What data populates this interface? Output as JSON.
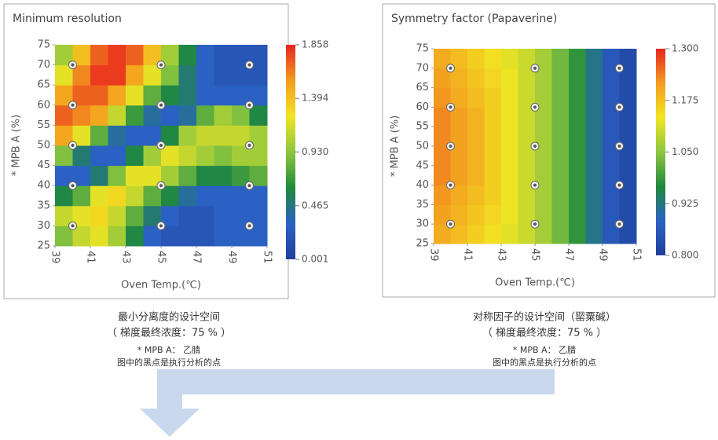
{
  "chart_data": [
    {
      "type": "heatmap",
      "title": "Minimum resolution",
      "x_label": "Oven Temp.(℃)",
      "y_label": "* MPB A (%)",
      "xlim": [
        39,
        51
      ],
      "ylim": [
        25,
        75
      ],
      "xticks": [
        39,
        41,
        43,
        45,
        47,
        49,
        51
      ],
      "yticks": [
        25,
        30,
        35,
        40,
        45,
        50,
        55,
        60,
        65,
        70,
        75
      ],
      "x_edges": [
        39,
        40,
        41,
        42,
        43,
        44,
        45,
        46,
        47,
        48,
        49,
        50,
        51
      ],
      "y_edges": [
        25,
        30,
        35,
        40,
        45,
        50,
        55,
        60,
        65,
        70,
        75
      ],
      "z": [
        [
          0.9,
          1.1,
          1.2,
          1.0,
          0.6,
          0.3,
          0.2,
          0.2,
          0.2,
          0.3,
          0.3,
          0.3
        ],
        [
          1.1,
          1.2,
          1.3,
          1.1,
          0.8,
          0.5,
          0.3,
          0.2,
          0.2,
          0.3,
          0.3,
          0.3
        ],
        [
          0.6,
          0.8,
          1.2,
          1.3,
          1.1,
          0.8,
          0.6,
          0.4,
          0.3,
          0.3,
          0.3,
          0.3
        ],
        [
          0.3,
          0.3,
          0.5,
          0.9,
          1.2,
          1.2,
          1.0,
          0.8,
          0.6,
          0.6,
          0.7,
          0.8
        ],
        [
          0.9,
          0.5,
          0.3,
          0.3,
          0.6,
          1.0,
          1.2,
          1.1,
          1.0,
          0.9,
          1.0,
          1.0
        ],
        [
          1.5,
          1.2,
          0.8,
          0.4,
          0.3,
          0.3,
          0.6,
          1.0,
          1.1,
          1.1,
          1.1,
          1.0
        ],
        [
          1.7,
          1.6,
          1.5,
          1.1,
          0.7,
          0.4,
          0.3,
          0.4,
          0.8,
          1.0,
          0.9,
          0.6
        ],
        [
          1.5,
          1.7,
          1.7,
          1.5,
          1.2,
          0.8,
          0.6,
          0.5,
          0.3,
          0.3,
          0.3,
          0.3
        ],
        [
          1.2,
          1.6,
          1.8,
          1.8,
          1.5,
          1.2,
          0.9,
          0.5,
          0.3,
          0.2,
          0.2,
          0.2
        ],
        [
          1.0,
          1.4,
          1.7,
          1.8,
          1.7,
          1.4,
          1.0,
          0.6,
          0.3,
          0.2,
          0.2,
          0.2
        ]
      ],
      "zlim": [
        0.001,
        1.858
      ],
      "zticks": [
        0.001,
        0.465,
        {
          "value": 0.93,
          "label": "0.930"
        },
        1.394,
        1.858
      ],
      "colorscale": [
        "#1f3f9c",
        "#2b62c4",
        "#1f8a3c",
        "#8cc63f",
        "#f2e522",
        "#f39c1f",
        "#e8251f"
      ],
      "points": {
        "x": [
          40,
          45,
          50,
          40,
          45,
          50,
          40,
          45,
          50,
          40,
          45,
          50,
          40,
          45,
          50
        ],
        "y": [
          70,
          70,
          70,
          60,
          60,
          60,
          50,
          50,
          50,
          40,
          40,
          40,
          30,
          30,
          30
        ]
      }
    },
    {
      "type": "heatmap",
      "title": "Symmetry factor (Papaverine)",
      "x_label": "Oven Temp.(℃)",
      "y_label": "* MPB A (%)",
      "xlim": [
        39,
        51
      ],
      "ylim": [
        25,
        75
      ],
      "xticks": [
        39,
        41,
        43,
        45,
        47,
        49,
        51
      ],
      "yticks": [
        25,
        30,
        35,
        40,
        45,
        50,
        55,
        60,
        65,
        70,
        75
      ],
      "x_edges": [
        39,
        40,
        41,
        42,
        43,
        44,
        45,
        46,
        47,
        48,
        49,
        50,
        51
      ],
      "y_edges": [
        25,
        30,
        35,
        40,
        45,
        50,
        55,
        60,
        65,
        70,
        75
      ],
      "z": [
        [
          1.2,
          1.18,
          1.16,
          1.14,
          1.12,
          1.1,
          1.07,
          1.03,
          0.98,
          0.92,
          0.86,
          0.83
        ],
        [
          1.21,
          1.19,
          1.17,
          1.15,
          1.13,
          1.1,
          1.07,
          1.03,
          0.98,
          0.92,
          0.86,
          0.83
        ],
        [
          1.22,
          1.2,
          1.18,
          1.16,
          1.13,
          1.1,
          1.07,
          1.03,
          0.98,
          0.92,
          0.86,
          0.83
        ],
        [
          1.23,
          1.21,
          1.19,
          1.16,
          1.13,
          1.1,
          1.07,
          1.03,
          0.98,
          0.92,
          0.86,
          0.83
        ],
        [
          1.23,
          1.21,
          1.19,
          1.16,
          1.13,
          1.1,
          1.07,
          1.03,
          0.98,
          0.92,
          0.86,
          0.83
        ],
        [
          1.23,
          1.21,
          1.19,
          1.16,
          1.13,
          1.1,
          1.07,
          1.03,
          0.98,
          0.92,
          0.86,
          0.83
        ],
        [
          1.23,
          1.21,
          1.19,
          1.16,
          1.13,
          1.1,
          1.07,
          1.03,
          0.98,
          0.92,
          0.86,
          0.83
        ],
        [
          1.22,
          1.2,
          1.18,
          1.16,
          1.13,
          1.1,
          1.07,
          1.03,
          0.98,
          0.92,
          0.86,
          0.83
        ],
        [
          1.21,
          1.19,
          1.17,
          1.15,
          1.13,
          1.1,
          1.07,
          1.03,
          0.98,
          0.92,
          0.86,
          0.83
        ],
        [
          1.2,
          1.18,
          1.16,
          1.14,
          1.12,
          1.1,
          1.07,
          1.03,
          0.98,
          0.92,
          0.86,
          0.83
        ]
      ],
      "zlim": [
        0.8,
        1.3
      ],
      "zticks": [
        {
          "value": 0.8,
          "label": "0.800"
        },
        0.925,
        {
          "value": 1.05,
          "label": "1.050"
        },
        1.175,
        {
          "value": 1.3,
          "label": "1.300"
        }
      ],
      "colorscale": [
        "#1f3f9c",
        "#2b62c4",
        "#1f8a3c",
        "#8cc63f",
        "#f2e522",
        "#f39c1f",
        "#e8251f"
      ],
      "points": {
        "x": [
          40,
          45,
          50,
          40,
          45,
          50,
          40,
          45,
          50,
          40,
          45,
          50,
          40,
          45,
          50
        ],
        "y": [
          70,
          70,
          70,
          60,
          60,
          60,
          50,
          50,
          50,
          40,
          40,
          40,
          30,
          30,
          30
        ]
      }
    }
  ],
  "captions": [
    {
      "lines": [
        "最小分离度的设计空间",
        "（ 梯度最终浓度：75 % ）",
        "* MPB A： 乙腈",
        "图中的黑点是执行分析的点"
      ]
    },
    {
      "lines": [
        "对称因子的设计空间（罂粟碱）",
        "（ 梯度最终浓度：75 % ）",
        "* MPB A： 乙腈",
        "图中的黑点是执行分析的点"
      ]
    }
  ]
}
